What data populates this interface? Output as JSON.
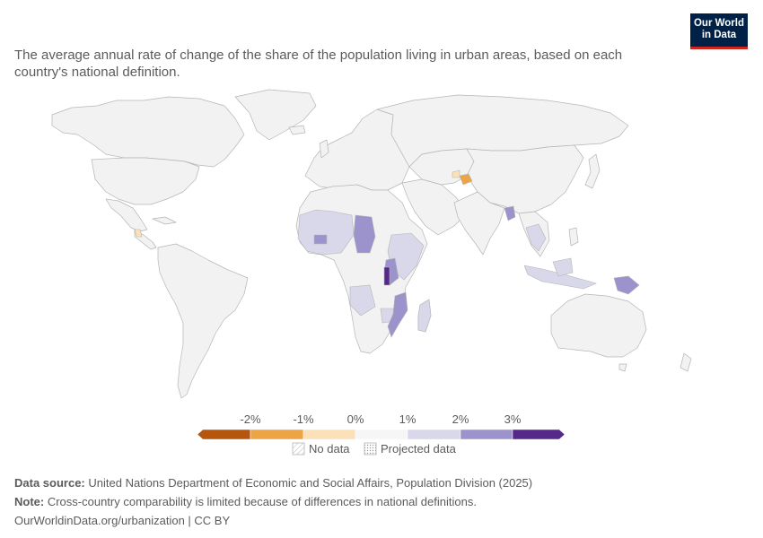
{
  "subtitle": "The average annual rate of change of the share of the population living in urban areas, based on each country's national definition.",
  "logo": {
    "line1": "Our World",
    "line2": "in Data"
  },
  "legend": {
    "ticks": [
      "-2%",
      "-1%",
      "0%",
      "1%",
      "2%",
      "3%"
    ],
    "bins": [
      {
        "color": "#b5560f"
      },
      {
        "color": "#eba547"
      },
      {
        "color": "#fce0b7"
      },
      {
        "color": "#f6f6f6"
      },
      {
        "color": "#d8d8ea"
      },
      {
        "color": "#9c93cc"
      },
      {
        "color": "#54298a"
      }
    ],
    "no_data": "No data",
    "projected": "Projected data"
  },
  "colors": {
    "land_no_data": "#f2f2f2",
    "border": "#b5b5b5",
    "brown": "#b5560f",
    "orange": "#eba547",
    "peach": "#fce0b7",
    "neutral": "#f6f6f6",
    "lavender": "#d8d8ea",
    "purple": "#9c93cc",
    "dark_purple": "#54298a"
  },
  "footer": {
    "source_label": "Data source:",
    "source_text": "United Nations Department of Economic and Social Affairs, Population Division (2025)",
    "note_label": "Note:",
    "note_text": "Cross-country comparability is limited because of differences in national definitions.",
    "url": "OurWorldinData.org/urbanization | CC BY"
  }
}
